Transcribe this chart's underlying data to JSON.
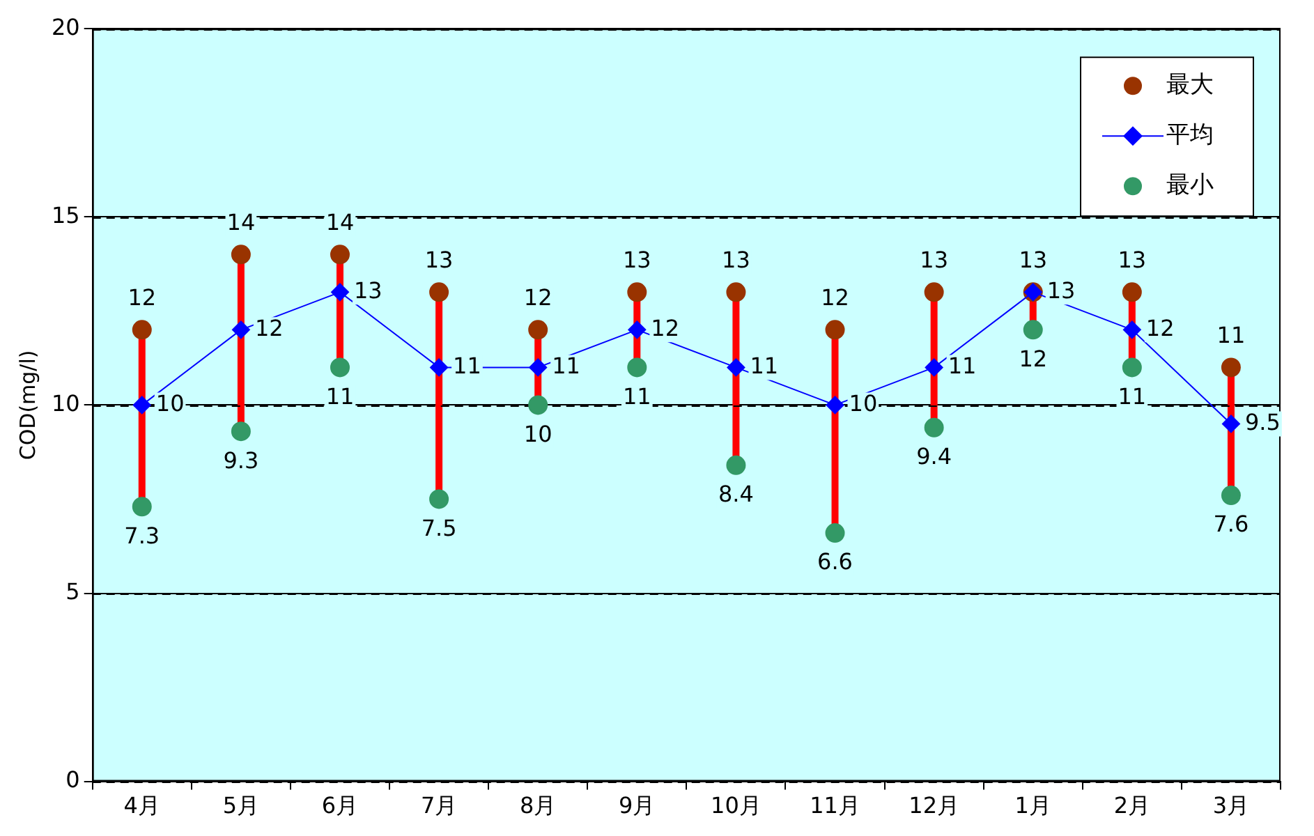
{
  "chart_data": {
    "type": "line",
    "ylabel": "COD(mg/l)",
    "categories": [
      "4月",
      "5月",
      "6月",
      "7月",
      "8月",
      "9月",
      "10月",
      "11月",
      "12月",
      "1月",
      "2月",
      "3月"
    ],
    "series": [
      {
        "name": "最大",
        "type": "scatter",
        "marker": "circle",
        "color": "#993300",
        "values": [
          12,
          14,
          14,
          13,
          12,
          13,
          13,
          12,
          13,
          13,
          13,
          11
        ]
      },
      {
        "name": "平均",
        "marker": "diamond",
        "color": "#0000ff",
        "values": [
          10,
          12,
          13,
          11,
          11,
          12,
          11,
          10,
          11,
          13,
          12,
          9.5
        ]
      },
      {
        "name": "最小",
        "type": "scatter",
        "marker": "circle",
        "color": "#339966",
        "values": [
          7.3,
          9.3,
          11,
          7.5,
          10,
          11,
          8.4,
          6.6,
          9.4,
          12,
          11,
          7.6
        ]
      }
    ],
    "ylim": [
      0,
      20
    ],
    "yticks": [
      0,
      5,
      10,
      15,
      20
    ],
    "grid": "y",
    "legend": "top right",
    "data_labels": true
  }
}
